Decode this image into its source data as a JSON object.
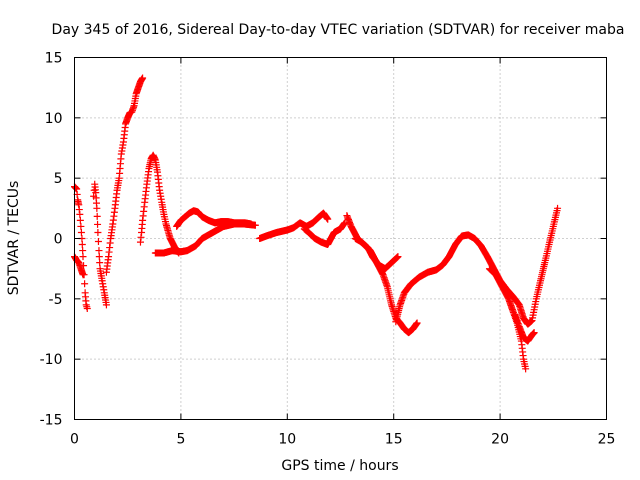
{
  "chart_data": {
    "type": "scatter",
    "title": "Day 345 of 2016, Sidereal Day-to-day VTEC variation (SDTVAR) for receiver maba",
    "xlabel": "GPS time / hours",
    "ylabel": "SDTVAR / TECUs",
    "xlim": [
      0,
      25
    ],
    "ylim": [
      -15,
      15
    ],
    "x_ticks": [
      0,
      5,
      10,
      15,
      20,
      25
    ],
    "y_ticks": [
      -15,
      -10,
      -5,
      0,
      5,
      10,
      15
    ],
    "grid": true,
    "marker": "plus",
    "colors": {
      "series": "#ff0000",
      "axes": "#000000",
      "grid": "#a0a0a0"
    },
    "series": [
      {
        "segments": [
          [
            [
              0.0,
              4.3
            ],
            [
              0.1,
              4.1
            ],
            [
              0.15,
              3.2
            ],
            [
              0.2,
              2.8
            ],
            [
              0.25,
              2.0
            ],
            [
              0.3,
              1.0
            ],
            [
              0.35,
              0.0
            ],
            [
              0.4,
              -1.5
            ],
            [
              0.45,
              -3.0
            ],
            [
              0.5,
              -4.5
            ],
            [
              0.55,
              -5.5
            ],
            [
              0.6,
              -5.8
            ]
          ],
          [
            [
              0.0,
              -1.5
            ],
            [
              0.1,
              -1.8
            ],
            [
              0.2,
              -2.0
            ],
            [
              0.3,
              -2.5
            ],
            [
              0.4,
              -3.0
            ]
          ],
          [
            [
              0.9,
              3.5
            ],
            [
              0.95,
              4.5
            ],
            [
              1.0,
              3.8
            ],
            [
              1.05,
              2.5
            ],
            [
              1.1,
              0.5
            ],
            [
              1.15,
              -1.0
            ],
            [
              1.2,
              -2.5
            ],
            [
              1.3,
              -3.5
            ],
            [
              1.4,
              -4.5
            ],
            [
              1.5,
              -5.5
            ]
          ],
          [
            [
              1.5,
              -2.8
            ],
            [
              1.6,
              -1.5
            ],
            [
              1.7,
              0.0
            ],
            [
              1.8,
              1.2
            ],
            [
              1.9,
              2.5
            ],
            [
              2.0,
              4.0
            ],
            [
              2.1,
              5.0
            ],
            [
              2.2,
              7.0
            ],
            [
              2.3,
              8.0
            ],
            [
              2.4,
              9.5
            ],
            [
              2.5,
              10.0
            ],
            [
              2.6,
              10.4
            ],
            [
              2.7,
              10.5
            ],
            [
              2.8,
              11.0
            ],
            [
              2.9,
              12.0
            ],
            [
              3.0,
              12.5
            ],
            [
              3.1,
              13.0
            ],
            [
              3.2,
              13.3
            ]
          ],
          [
            [
              3.1,
              -0.3
            ],
            [
              3.15,
              0.5
            ],
            [
              3.2,
              1.5
            ],
            [
              3.3,
              3.0
            ],
            [
              3.4,
              4.5
            ],
            [
              3.5,
              5.8
            ],
            [
              3.6,
              6.6
            ],
            [
              3.7,
              6.9
            ],
            [
              3.8,
              6.5
            ],
            [
              3.9,
              5.5
            ],
            [
              4.0,
              4.0
            ],
            [
              4.1,
              3.0
            ],
            [
              4.2,
              2.0
            ],
            [
              4.3,
              1.2
            ],
            [
              4.5,
              0.0
            ],
            [
              4.7,
              -0.7
            ],
            [
              4.9,
              -1.2
            ]
          ],
          [
            [
              3.8,
              -1.2
            ],
            [
              4.2,
              -1.2
            ],
            [
              4.6,
              -1.0
            ],
            [
              5.0,
              -1.1
            ],
            [
              5.3,
              -1.0
            ],
            [
              5.7,
              -0.6
            ],
            [
              6.0,
              0.0
            ],
            [
              6.5,
              0.5
            ],
            [
              7.0,
              1.0
            ],
            [
              7.5,
              1.2
            ],
            [
              8.0,
              1.2
            ],
            [
              8.5,
              1.1
            ]
          ],
          [
            [
              4.8,
              1.0
            ],
            [
              5.0,
              1.5
            ],
            [
              5.2,
              1.8
            ],
            [
              5.4,
              2.1
            ],
            [
              5.6,
              2.3
            ],
            [
              5.8,
              2.2
            ],
            [
              6.0,
              1.8
            ],
            [
              6.3,
              1.5
            ],
            [
              6.6,
              1.3
            ],
            [
              6.9,
              1.4
            ],
            [
              7.2,
              1.4
            ],
            [
              7.5,
              1.3
            ],
            [
              8.0,
              1.3
            ],
            [
              8.3,
              1.2
            ]
          ],
          [
            [
              8.7,
              0.0
            ],
            [
              9.0,
              0.2
            ],
            [
              9.5,
              0.5
            ],
            [
              10.0,
              0.7
            ],
            [
              10.3,
              0.9
            ],
            [
              10.6,
              1.3
            ],
            [
              10.9,
              1.0
            ],
            [
              11.2,
              1.3
            ],
            [
              11.5,
              1.8
            ],
            [
              11.7,
              2.1
            ],
            [
              11.9,
              1.6
            ]
          ],
          [
            [
              10.8,
              0.8
            ],
            [
              11.0,
              0.5
            ],
            [
              11.3,
              0.0
            ],
            [
              11.6,
              -0.3
            ],
            [
              11.9,
              -0.5
            ],
            [
              12.2,
              0.5
            ],
            [
              12.5,
              0.8
            ],
            [
              12.7,
              1.3
            ]
          ],
          [
            [
              12.8,
              1.9
            ],
            [
              13.0,
              1.0
            ],
            [
              13.3,
              0.0
            ],
            [
              13.6,
              -0.5
            ],
            [
              13.9,
              -1.0
            ],
            [
              14.2,
              -2.0
            ],
            [
              14.5,
              -3.0
            ],
            [
              14.7,
              -4.0
            ],
            [
              14.9,
              -5.5
            ],
            [
              15.1,
              -6.6
            ],
            [
              15.3,
              -7.0
            ],
            [
              15.5,
              -7.5
            ],
            [
              15.7,
              -7.8
            ],
            [
              15.9,
              -7.5
            ],
            [
              16.1,
              -7.0
            ]
          ],
          [
            [
              13.2,
              0.0
            ],
            [
              13.5,
              -0.3
            ],
            [
              13.8,
              -0.8
            ],
            [
              14.0,
              -1.5
            ],
            [
              14.3,
              -2.2
            ],
            [
              14.6,
              -2.5
            ],
            [
              14.9,
              -2.0
            ],
            [
              15.2,
              -1.5
            ]
          ],
          [
            [
              15.1,
              -6.9
            ],
            [
              15.3,
              -5.5
            ],
            [
              15.5,
              -4.5
            ],
            [
              15.8,
              -3.8
            ],
            [
              16.2,
              -3.2
            ],
            [
              16.6,
              -2.8
            ],
            [
              17.0,
              -2.6
            ],
            [
              17.3,
              -2.2
            ],
            [
              17.6,
              -1.5
            ],
            [
              17.9,
              -0.5
            ],
            [
              18.2,
              0.2
            ],
            [
              18.5,
              0.3
            ],
            [
              18.8,
              0.0
            ],
            [
              19.1,
              -0.6
            ],
            [
              19.4,
              -1.5
            ],
            [
              19.7,
              -2.5
            ],
            [
              20.0,
              -3.5
            ],
            [
              20.3,
              -4.2
            ],
            [
              20.6,
              -4.8
            ],
            [
              20.9,
              -5.5
            ],
            [
              21.1,
              -6.6
            ],
            [
              21.3,
              -7.1
            ],
            [
              21.5,
              -6.8
            ],
            [
              21.7,
              -5.0
            ],
            [
              21.9,
              -3.5
            ],
            [
              22.1,
              -2.0
            ],
            [
              22.3,
              -0.5
            ],
            [
              22.5,
              1.0
            ],
            [
              22.7,
              2.5
            ]
          ],
          [
            [
              19.5,
              -2.5
            ],
            [
              19.8,
              -3.0
            ],
            [
              20.1,
              -4.0
            ],
            [
              20.4,
              -5.0
            ],
            [
              20.6,
              -6.0
            ],
            [
              20.8,
              -7.0
            ],
            [
              21.0,
              -8.5
            ],
            [
              21.1,
              -10.0
            ],
            [
              21.2,
              -10.8
            ]
          ],
          [
            [
              20.7,
              -6.3
            ],
            [
              20.9,
              -7.3
            ],
            [
              21.1,
              -8.2
            ],
            [
              21.3,
              -8.5
            ],
            [
              21.5,
              -8.0
            ],
            [
              21.6,
              -7.8
            ]
          ]
        ]
      }
    ]
  }
}
